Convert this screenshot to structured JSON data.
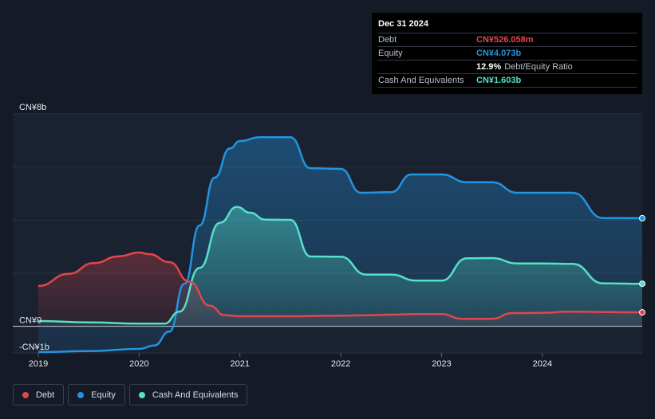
{
  "tooltip": {
    "date": "Dec 31 2024",
    "rows": [
      {
        "label": "Debt",
        "value": "CN¥526.058m",
        "color": "#e0474c"
      },
      {
        "label": "Equity",
        "value": "CN¥4.073b",
        "color": "#2394df"
      },
      {
        "label": "",
        "value": "12.9%",
        "extra": "Debt/Equity Ratio",
        "color": "#ffffff"
      },
      {
        "label": "Cash And Equivalents",
        "value": "CN¥1.603b",
        "color": "#54e1c7"
      }
    ]
  },
  "legend": [
    {
      "label": "Debt",
      "color": "#e0474c"
    },
    {
      "label": "Equity",
      "color": "#2394df"
    },
    {
      "label": "Cash And Equivalents",
      "color": "#54e1c7"
    }
  ],
  "chart_data": {
    "type": "area",
    "y_unit": "CN¥ billions",
    "ylim": [
      -1,
      8
    ],
    "y_tick_labels": [
      {
        "value": 8,
        "label": "CN¥8b"
      },
      {
        "value": 0,
        "label": "CN¥0"
      },
      {
        "value": -1,
        "label": "-CN¥1b"
      }
    ],
    "x_ticks": [
      2019,
      2020,
      2021,
      2022,
      2023,
      2024
    ],
    "xlim": [
      2019,
      2024.99
    ],
    "grid": true,
    "legend_position": "bottom-left",
    "series": [
      {
        "name": "Debt",
        "color": "#e0474c",
        "points": [
          [
            2019.0,
            1.52
          ],
          [
            2019.3,
            1.98
          ],
          [
            2019.55,
            2.38
          ],
          [
            2019.8,
            2.64
          ],
          [
            2020.0,
            2.78
          ],
          [
            2020.1,
            2.72
          ],
          [
            2020.3,
            2.42
          ],
          [
            2020.5,
            1.68
          ],
          [
            2020.7,
            0.78
          ],
          [
            2020.85,
            0.42
          ],
          [
            2021.0,
            0.38
          ],
          [
            2021.5,
            0.38
          ],
          [
            2022.0,
            0.4
          ],
          [
            2022.25,
            0.42
          ],
          [
            2022.5,
            0.44
          ],
          [
            2022.75,
            0.46
          ],
          [
            2023.0,
            0.46
          ],
          [
            2023.2,
            0.28
          ],
          [
            2023.5,
            0.28
          ],
          [
            2023.7,
            0.5
          ],
          [
            2024.0,
            0.51
          ],
          [
            2024.25,
            0.55
          ],
          [
            2024.99,
            0.526
          ]
        ]
      },
      {
        "name": "Equity",
        "color": "#2394df",
        "points": [
          [
            2019.0,
            -0.97
          ],
          [
            2019.5,
            -0.93
          ],
          [
            2020.0,
            -0.85
          ],
          [
            2020.15,
            -0.72
          ],
          [
            2020.3,
            -0.2
          ],
          [
            2020.45,
            1.6
          ],
          [
            2020.6,
            3.8
          ],
          [
            2020.75,
            5.6
          ],
          [
            2020.9,
            6.7
          ],
          [
            2021.0,
            6.98
          ],
          [
            2021.2,
            7.12
          ],
          [
            2021.5,
            7.12
          ],
          [
            2021.7,
            5.95
          ],
          [
            2022.0,
            5.93
          ],
          [
            2022.2,
            5.03
          ],
          [
            2022.5,
            5.05
          ],
          [
            2022.7,
            5.72
          ],
          [
            2023.0,
            5.72
          ],
          [
            2023.25,
            5.43
          ],
          [
            2023.5,
            5.43
          ],
          [
            2023.75,
            5.03
          ],
          [
            2024.0,
            5.03
          ],
          [
            2024.3,
            5.03
          ],
          [
            2024.6,
            4.08
          ],
          [
            2024.99,
            4.073
          ]
        ]
      },
      {
        "name": "Cash And Equivalents",
        "color": "#54e1c7",
        "points": [
          [
            2019.0,
            0.2
          ],
          [
            2019.5,
            0.15
          ],
          [
            2020.0,
            0.1
          ],
          [
            2020.25,
            0.1
          ],
          [
            2020.4,
            0.55
          ],
          [
            2020.6,
            2.2
          ],
          [
            2020.8,
            3.9
          ],
          [
            2020.97,
            4.5
          ],
          [
            2021.1,
            4.28
          ],
          [
            2021.25,
            4.02
          ],
          [
            2021.5,
            4.01
          ],
          [
            2021.7,
            2.63
          ],
          [
            2022.0,
            2.62
          ],
          [
            2022.25,
            1.95
          ],
          [
            2022.5,
            1.95
          ],
          [
            2022.75,
            1.72
          ],
          [
            2023.0,
            1.72
          ],
          [
            2023.25,
            2.56
          ],
          [
            2023.5,
            2.57
          ],
          [
            2023.75,
            2.37
          ],
          [
            2024.0,
            2.37
          ],
          [
            2024.3,
            2.35
          ],
          [
            2024.6,
            1.62
          ],
          [
            2024.99,
            1.603
          ]
        ]
      }
    ]
  }
}
